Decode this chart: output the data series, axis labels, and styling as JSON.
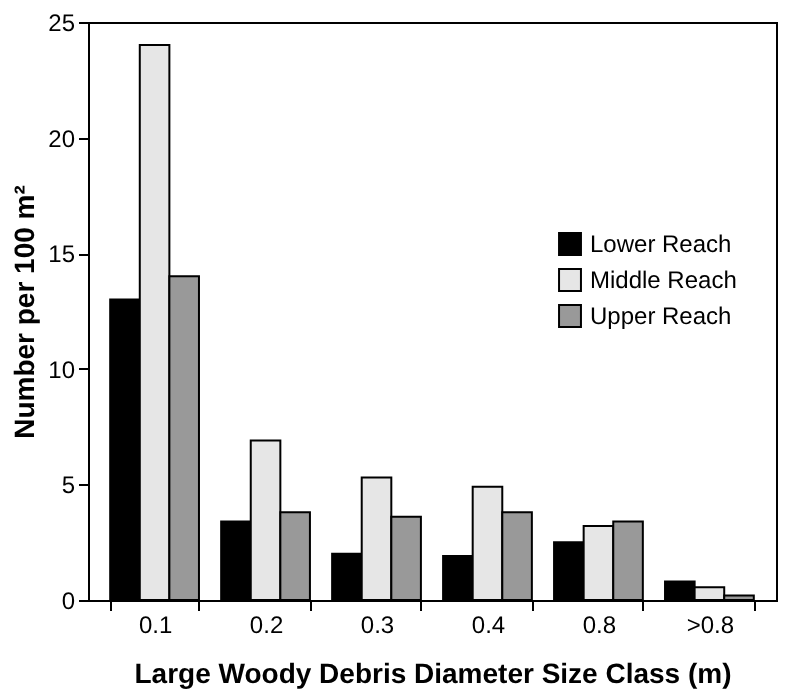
{
  "chart_data": {
    "type": "bar",
    "xlabel": "Large Woody Debris Diameter Size Class (m)",
    "ylabel": "Number per 100 m²",
    "categories": [
      "0.1",
      "0.2",
      "0.3",
      "0.4",
      "0.8",
      ">0.8"
    ],
    "series": [
      {
        "name": "Lower Reach",
        "color": "#000000",
        "values": [
          13,
          3.4,
          2.0,
          1.9,
          2.5,
          0.8
        ]
      },
      {
        "name": "Middle Reach",
        "color": "#e6e6e6",
        "values": [
          24,
          6.9,
          5.3,
          4.9,
          3.2,
          0.55
        ]
      },
      {
        "name": "Upper Reach",
        "color": "#999999",
        "values": [
          14,
          3.8,
          3.6,
          3.8,
          3.4,
          0.2
        ]
      }
    ],
    "ylim": [
      0,
      25
    ],
    "yticks": [
      0,
      5,
      10,
      15,
      20,
      25
    ],
    "grid": false,
    "legend": "right"
  }
}
